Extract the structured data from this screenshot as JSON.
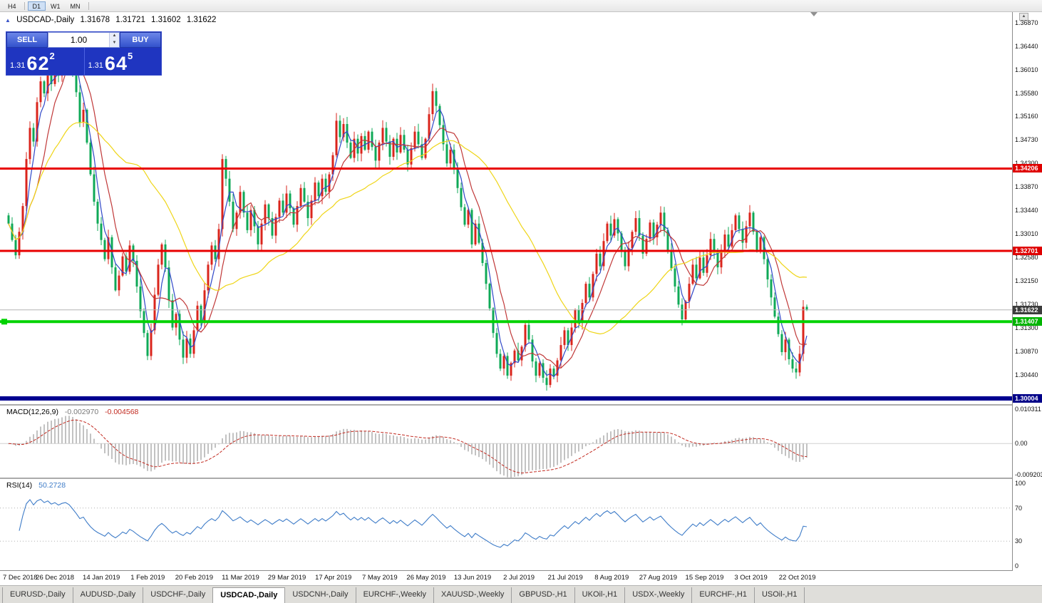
{
  "toolbar": {
    "timeframes": [
      {
        "label": "H4",
        "active": false
      },
      {
        "label": "D1",
        "active": true
      },
      {
        "label": "W1",
        "active": false
      },
      {
        "label": "MN",
        "active": false
      }
    ]
  },
  "chart_header": {
    "symbol": "USDCAD-,Daily",
    "open": "1.31678",
    "high": "1.31721",
    "low": "1.31602",
    "close": "1.31622"
  },
  "trade_panel": {
    "sell_label": "SELL",
    "buy_label": "BUY",
    "volume": "1.00",
    "bid": {
      "prefix": "1.31",
      "big": "62",
      "sup": "2"
    },
    "ask": {
      "prefix": "1.31",
      "big": "64",
      "sup": "5"
    }
  },
  "price_scale": {
    "ticks": [
      "1.36870",
      "1.36440",
      "1.36010",
      "1.35580",
      "1.35160",
      "1.34730",
      "1.34300",
      "1.33870",
      "1.33440",
      "1.33010",
      "1.32580",
      "1.32150",
      "1.31730",
      "1.31300",
      "1.30870",
      "1.30440"
    ]
  },
  "badges": [
    {
      "text": "1.34206",
      "price": 1.34206,
      "bg": "#DF0000",
      "fg": "#FFFFFF"
    },
    {
      "text": "1.32701",
      "price": 1.32701,
      "bg": "#DF0000",
      "fg": "#FFFFFF"
    },
    {
      "text": "1.31622",
      "price": 1.31622,
      "bg": "#3C3C3C",
      "fg": "#FFFFFF"
    },
    {
      "text": "1.31407",
      "price": 1.31407,
      "bg": "#00B400",
      "fg": "#FFFFFF"
    },
    {
      "text": "1.30004",
      "price": 1.30004,
      "bg": "#000088",
      "fg": "#FFFFFF"
    }
  ],
  "indicators": {
    "macd": {
      "title": "MACD(12,26,9)",
      "main_value": "-0.002970",
      "signal_value": "-0.004568",
      "scale_top": "0.010311",
      "scale_zero": "0.00",
      "scale_bottom": "-0.009203"
    },
    "rsi": {
      "title": "RSI(14)",
      "value": "50.2728",
      "levels": [
        "100",
        "70",
        "30",
        "0"
      ]
    }
  },
  "date_axis": {
    "labels": [
      "7 Dec 2018",
      "26 Dec 2018",
      "14 Jan 2019",
      "1 Feb 2019",
      "20 Feb 2019",
      "11 Mar 2019",
      "29 Mar 2019",
      "17 Apr 2019",
      "7 May 2019",
      "26 May 2019",
      "13 Jun 2019",
      "2 Jul 2019",
      "21 Jul 2019",
      "8 Aug 2019",
      "27 Aug 2019",
      "15 Sep 2019",
      "3 Oct 2019",
      "22 Oct 2019"
    ]
  },
  "tabs": {
    "items": [
      {
        "label": "EURUSD-,Daily",
        "active": false
      },
      {
        "label": "AUDUSD-,Daily",
        "active": false
      },
      {
        "label": "USDCHF-,Daily",
        "active": false
      },
      {
        "label": "USDCAD-,Daily",
        "active": true
      },
      {
        "label": "USDCNH-,Daily",
        "active": false
      },
      {
        "label": "EURCHF-,Weekly",
        "active": false
      },
      {
        "label": "XAUUSD-,Weekly",
        "active": false
      },
      {
        "label": "GBPUSD-,H1",
        "active": false
      },
      {
        "label": "UKOil-,H1",
        "active": false
      },
      {
        "label": "USDX-,Weekly",
        "active": false
      },
      {
        "label": "EURCHF-,H1",
        "active": false
      },
      {
        "label": "USOil-,H1",
        "active": false
      }
    ]
  },
  "chart_data": {
    "type": "candlestick",
    "symbol": "USDCAD",
    "timeframe": "Daily",
    "title": "USDCAD-,Daily",
    "current_price": 1.31622,
    "last_candle_ohlc": {
      "open": 1.31678,
      "high": 1.31721,
      "low": 1.31602,
      "close": 1.31622
    },
    "colors": {
      "up": "#DA251C",
      "down": "#0FA957"
    },
    "y_axis": {
      "range": [
        1.299,
        1.37065
      ]
    },
    "x_labels": [
      "7 Dec 2018",
      "26 Dec 2018",
      "14 Jan 2019",
      "1 Feb 2019",
      "20 Feb 2019",
      "11 Mar 2019",
      "29 Mar 2019",
      "17 Apr 2019",
      "7 May 2019",
      "26 May 2019",
      "13 Jun 2019",
      "2 Jul 2019",
      "21 Jul 2019",
      "8 Aug 2019",
      "27 Aug 2019",
      "15 Sep 2019",
      "3 Oct 2019",
      "22 Oct 2019"
    ],
    "candles_per_label": 13,
    "closes": [
      1.332,
      1.329,
      1.3262,
      1.3305,
      1.3352,
      1.3438,
      1.3495,
      1.347,
      1.3542,
      1.358,
      1.3558,
      1.36,
      1.3575,
      1.3612,
      1.359,
      1.3635,
      1.3658,
      1.364,
      1.3602,
      1.356,
      1.3505,
      1.3528,
      1.3468,
      1.341,
      1.336,
      1.332,
      1.329,
      1.3255,
      1.3295,
      1.324,
      1.3198,
      1.3225,
      1.326,
      1.3232,
      1.328,
      1.3252,
      1.3205,
      1.316,
      1.312,
      1.3078,
      1.3125,
      1.319,
      1.3245,
      1.3282,
      1.324,
      1.318,
      1.313,
      1.3155,
      1.3108,
      1.3075,
      1.311,
      1.3082,
      1.3125,
      1.317,
      1.314,
      1.3198,
      1.3245,
      1.328,
      1.3255,
      1.331,
      1.3438,
      1.3402,
      1.336,
      1.331,
      1.334,
      1.3378,
      1.334,
      1.3308,
      1.3345,
      1.3315,
      1.3282,
      1.332,
      1.3355,
      1.333,
      1.3298,
      1.3332,
      1.3362,
      1.334,
      1.3375,
      1.3348,
      1.3318,
      1.3352,
      1.3385,
      1.336,
      1.333,
      1.3362,
      1.3395,
      1.337,
      1.3402,
      1.3378,
      1.341,
      1.3445,
      1.3508,
      1.3478,
      1.3502,
      1.3468,
      1.344,
      1.3475,
      1.3448,
      1.348,
      1.3455,
      1.3488,
      1.346,
      1.3435,
      1.3468,
      1.3495,
      1.347,
      1.3442,
      1.3475,
      1.345,
      1.3482,
      1.3455,
      1.3428,
      1.3458,
      1.3488,
      1.3465,
      1.344,
      1.3475,
      1.352,
      1.3562,
      1.3535,
      1.35,
      1.3465,
      1.343,
      1.3455,
      1.342,
      1.3385,
      1.335,
      1.3318,
      1.3345,
      1.3282,
      1.332,
      1.3285,
      1.3248,
      1.321,
      1.3165,
      1.312,
      1.3082,
      1.3055,
      1.3078,
      1.3042,
      1.3065,
      1.3088,
      1.307,
      1.3095,
      1.3135,
      1.3108,
      1.3068,
      1.3042,
      1.3065,
      1.3038,
      1.3025,
      1.3055,
      1.3042,
      1.307,
      1.3098,
      1.3125,
      1.3098,
      1.313,
      1.3162,
      1.314,
      1.3175,
      1.321,
      1.3185,
      1.3228,
      1.3265,
      1.3242,
      1.3288,
      1.332,
      1.3298,
      1.3328,
      1.3302,
      1.327,
      1.3242,
      1.3275,
      1.3305,
      1.333,
      1.3298,
      1.3265,
      1.3292,
      1.3322,
      1.3295,
      1.3318,
      1.334,
      1.3308,
      1.3272,
      1.3238,
      1.3205,
      1.3172,
      1.3145,
      1.3178,
      1.321,
      1.3245,
      1.322,
      1.3258,
      1.323,
      1.3262,
      1.3292,
      1.3268,
      1.324,
      1.3272,
      1.33,
      1.3278,
      1.3308,
      1.3335,
      1.331,
      1.3285,
      1.3315,
      1.334,
      1.3305,
      1.327,
      1.3295,
      1.3255,
      1.3218,
      1.3185,
      1.315,
      1.3118,
      1.3085,
      1.3108,
      1.3072,
      1.3055,
      1.3048,
      1.3082,
      1.3168,
      1.31622
    ],
    "hlines": [
      {
        "price": 1.34206,
        "color": "#E80000",
        "width": 3,
        "handle": false
      },
      {
        "price": 1.32701,
        "color": "#E80000",
        "width": 3,
        "handle": false
      },
      {
        "price": 1.31407,
        "color": "#00D200",
        "width": 4,
        "handle": true
      },
      {
        "price": 1.30004,
        "color": "#000090",
        "width": 6,
        "handle": false
      }
    ],
    "moving_averages": [
      {
        "name": "ma-fast-blue",
        "period": 4,
        "color": "#3048C8"
      },
      {
        "name": "ma-medium-red",
        "period": 9,
        "color": "#C03838"
      },
      {
        "name": "ma-slow-yellow",
        "period": 34,
        "color": "#EFD517"
      }
    ],
    "macd": {
      "params": "12,26,9",
      "main": -0.00297,
      "signal": -0.004568,
      "scale": [
        0.010311,
        0,
        -0.009203
      ],
      "histogram_color": "#C2C2C2",
      "signal_color": "#C22A20"
    },
    "rsi": {
      "period": 14,
      "value": 50.2728,
      "levels": [
        100,
        70,
        30,
        0
      ],
      "color": "#3E7CC8"
    }
  }
}
